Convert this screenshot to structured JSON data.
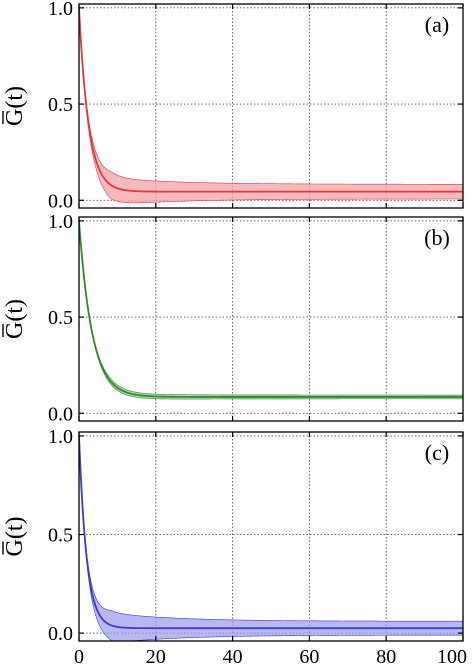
{
  "chart_data": [
    {
      "type": "line",
      "panel_label": "(a)",
      "ylabel": "G(t)",
      "xlim": [
        0,
        100
      ],
      "ylim": [
        -0.04,
        1.02
      ],
      "xticks": [
        0,
        20,
        40,
        60,
        80,
        100
      ],
      "yticks": [
        0.0,
        0.5,
        1.0
      ],
      "ytick_labels": [
        "0.0",
        "0.5",
        "1.0"
      ],
      "grid": true,
      "color": "#e0393e",
      "band_color": "#f4a3a6",
      "decay": {
        "tau": 2.5,
        "plateau": 0.045,
        "band_tau": 3.0,
        "band_plateau": 0.09,
        "band_late": 0.038
      },
      "x": [
        0,
        1,
        2,
        3,
        4,
        5,
        6,
        8,
        10,
        15,
        20,
        40,
        60,
        80,
        100
      ],
      "y": [
        1.0,
        0.72,
        0.52,
        0.38,
        0.28,
        0.21,
        0.16,
        0.1,
        0.075,
        0.055,
        0.05,
        0.048,
        0.047,
        0.046,
        0.045
      ],
      "band_half_width": [
        0.0,
        0.1,
        0.12,
        0.12,
        0.11,
        0.1,
        0.09,
        0.07,
        0.055,
        0.045,
        0.04,
        0.04,
        0.04,
        0.04,
        0.04
      ]
    },
    {
      "type": "line",
      "panel_label": "(b)",
      "ylabel": "G(t)",
      "xlim": [
        0,
        100
      ],
      "ylim": [
        -0.04,
        1.02
      ],
      "xticks": [
        0,
        20,
        40,
        60,
        80,
        100
      ],
      "yticks": [
        0.0,
        0.5,
        1.0
      ],
      "ytick_labels": [
        "0.0",
        "0.5",
        "1.0"
      ],
      "grid": true,
      "color": "#2e8b2e",
      "band_color": "#8fd08f",
      "decay": {
        "tau": 3.4,
        "plateau": 0.085,
        "band_tau": 2.5,
        "band_plateau": 0.018,
        "band_late": 0.01
      },
      "x": [
        0,
        1,
        2,
        3,
        4,
        5,
        6,
        8,
        10,
        15,
        20,
        40,
        60,
        80,
        100
      ],
      "y": [
        1.0,
        0.76,
        0.59,
        0.46,
        0.36,
        0.28,
        0.22,
        0.15,
        0.11,
        0.09,
        0.086,
        0.087,
        0.088,
        0.088,
        0.088
      ],
      "band_half_width": [
        0.0,
        0.02,
        0.02,
        0.02,
        0.02,
        0.02,
        0.02,
        0.015,
        0.012,
        0.01,
        0.01,
        0.01,
        0.01,
        0.01,
        0.01
      ]
    },
    {
      "type": "line",
      "panel_label": "(c)",
      "ylabel": "G(t)",
      "xlim": [
        0,
        100
      ],
      "ylim": [
        -0.04,
        1.02
      ],
      "xticks": [
        0,
        20,
        40,
        60,
        80,
        100
      ],
      "yticks": [
        0.0,
        0.5,
        1.0
      ],
      "ytick_labels": [
        "0.0",
        "0.5",
        "1.0"
      ],
      "xtick_labels": [
        "0",
        "20",
        "40",
        "60",
        "80",
        "100"
      ],
      "grid": true,
      "color": "#3b3bdc",
      "band_color": "#9f9ff0",
      "decay": {
        "tau": 2.0,
        "plateau": 0.025,
        "band_tau": 3.0,
        "band_plateau": 0.1,
        "band_late": 0.035
      },
      "x": [
        0,
        1,
        2,
        3,
        4,
        5,
        6,
        8,
        10,
        15,
        20,
        40,
        60,
        80,
        100
      ],
      "y": [
        1.0,
        0.63,
        0.4,
        0.26,
        0.17,
        0.11,
        0.08,
        0.05,
        0.035,
        0.028,
        0.026,
        0.025,
        0.025,
        0.025,
        0.025
      ],
      "band_half_width": [
        0.0,
        0.12,
        0.13,
        0.12,
        0.11,
        0.1,
        0.09,
        0.07,
        0.055,
        0.045,
        0.04,
        0.035,
        0.035,
        0.035,
        0.035
      ]
    }
  ]
}
